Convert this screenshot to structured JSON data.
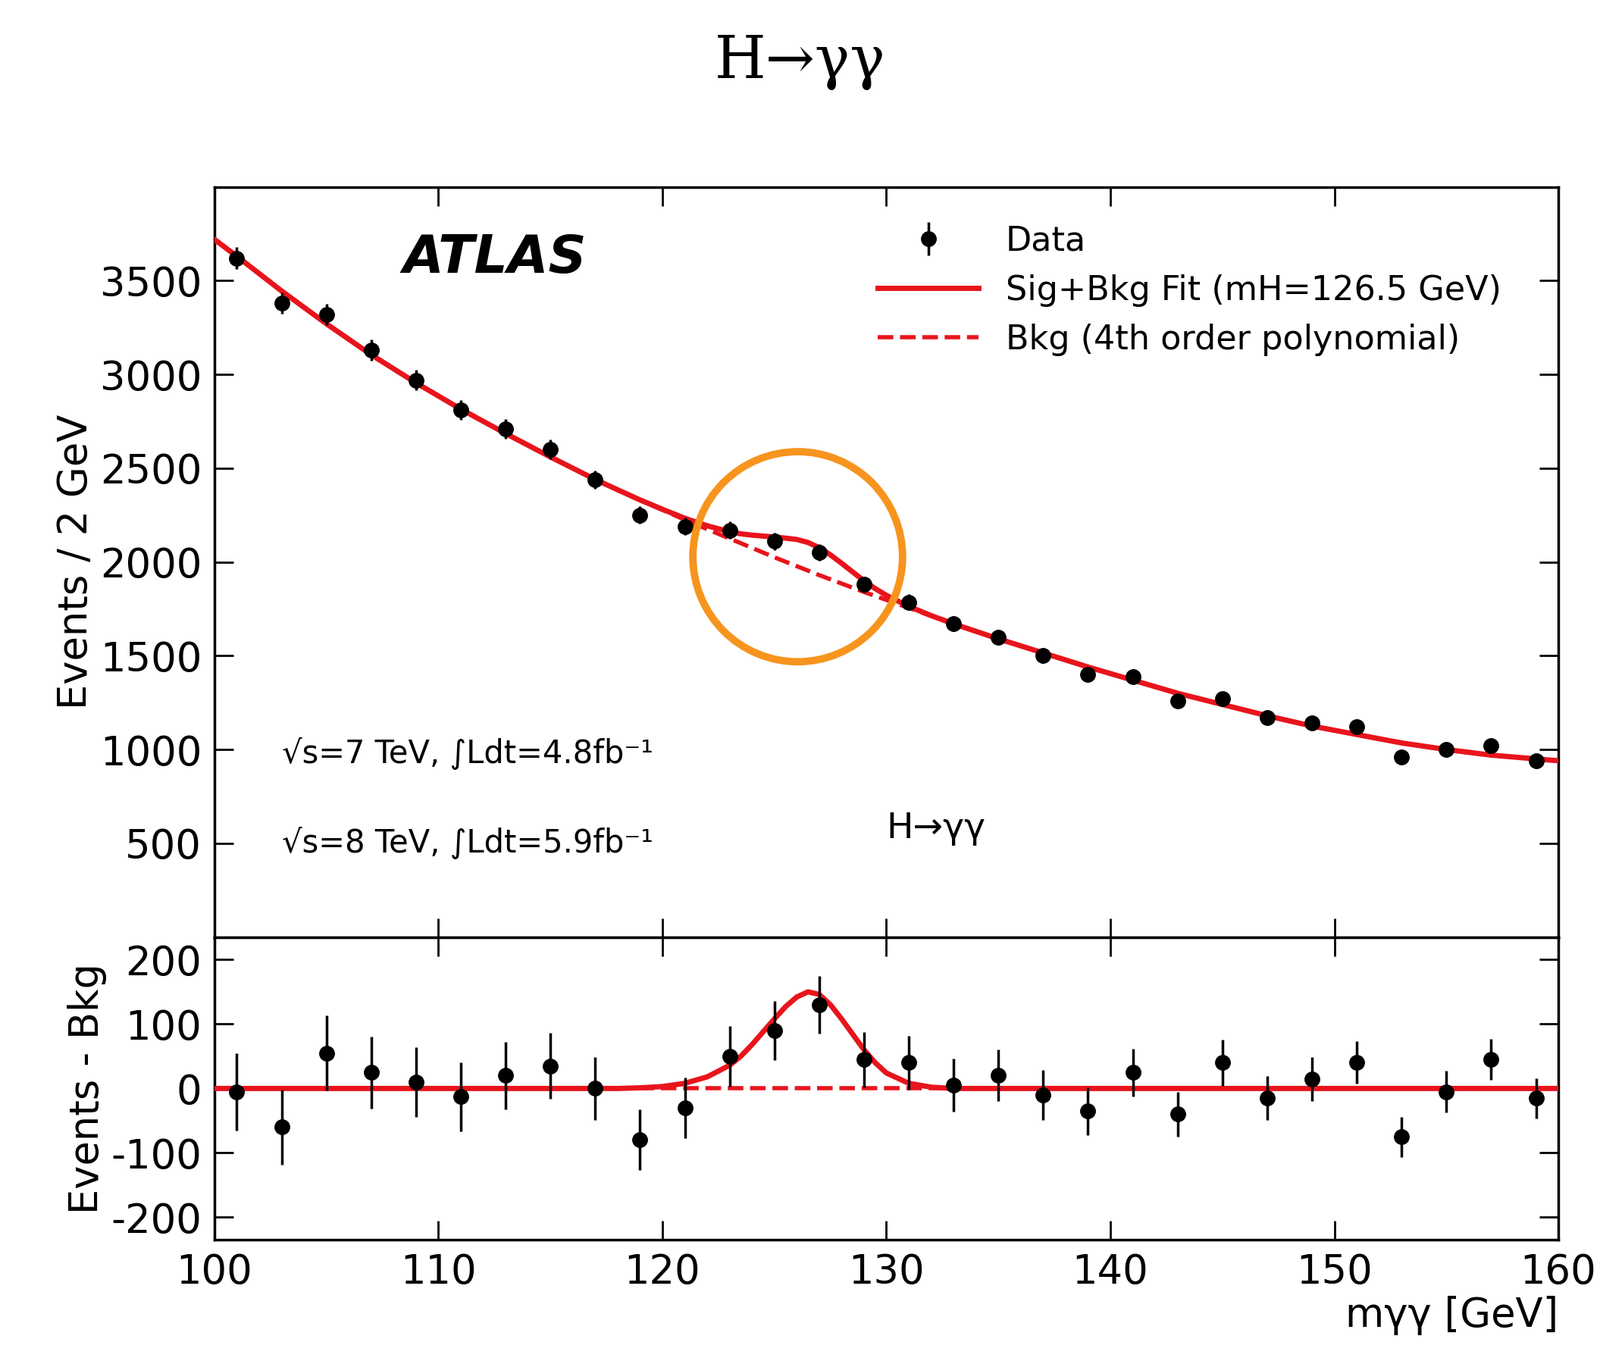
{
  "chart_data": [
    {
      "type": "scatter",
      "title": "H→γγ",
      "y_label": "Events / 2 GeV",
      "annotations": [
        "ATLAS",
        "√s=7 TeV, ∫Ldt=4.8fb⁻¹",
        "√s=8 TeV, ∫Ldt=5.9fb⁻¹",
        "H→γγ"
      ],
      "xlim": [
        100,
        160
      ],
      "xticks": [
        100,
        110,
        120,
        130,
        140,
        150,
        160
      ],
      "ylim": [
        0,
        4000
      ],
      "yticks": [
        500,
        1000,
        1500,
        2000,
        2500,
        3000,
        3500
      ],
      "tick_labels": "y",
      "legend": "upper right",
      "series": [
        {
          "name": "Data",
          "type": "scatter",
          "color": "#000000",
          "marker": "o",
          "x": [
            101,
            103,
            105,
            107,
            109,
            111,
            113,
            115,
            117,
            119,
            121,
            123,
            125,
            127,
            129,
            131,
            133,
            135,
            137,
            139,
            141,
            143,
            145,
            147,
            149,
            151,
            153,
            155,
            157,
            159
          ],
          "values": [
            3620,
            3380,
            3320,
            3130,
            2970,
            2810,
            2710,
            2600,
            2440,
            2250,
            2190,
            2170,
            2110,
            2050,
            1880,
            1785,
            1670,
            1600,
            1500,
            1400,
            1390,
            1260,
            1270,
            1170,
            1140,
            1120,
            960,
            1000,
            1020,
            940
          ],
          "errors": [
            60,
            58,
            58,
            56,
            54,
            53,
            52,
            51,
            49,
            47,
            47,
            47,
            46,
            45,
            43,
            42,
            41,
            40,
            39,
            37,
            37,
            35,
            36,
            34,
            34,
            33,
            31,
            32,
            32,
            31
          ]
        },
        {
          "name": "Sig+Bkg Fit (mH=126.5 GeV)",
          "type": "line",
          "color": "#e8141c",
          "line_style": "solid",
          "x": [
            100,
            101,
            103,
            105,
            107,
            109,
            111,
            113,
            115,
            117,
            118,
            119,
            120,
            121,
            122,
            123,
            123.5,
            124,
            124.5,
            125,
            125.5,
            126,
            126.5,
            127,
            127.5,
            128,
            128.5,
            129,
            129.5,
            130,
            131,
            132,
            133,
            135,
            137,
            139,
            141,
            143,
            145,
            147,
            149,
            151,
            153,
            155,
            157,
            159,
            160
          ],
          "values": [
            3720,
            3630,
            3445,
            3270,
            3105,
            2955,
            2815,
            2685,
            2560,
            2440,
            2385,
            2331,
            2281,
            2233,
            2193,
            2161,
            2150,
            2143,
            2138,
            2133,
            2127,
            2120,
            2104,
            2076,
            2038,
            1993,
            1946,
            1900,
            1858,
            1822,
            1763,
            1714,
            1670,
            1590,
            1515,
            1440,
            1370,
            1300,
            1240,
            1180,
            1125,
            1080,
            1035,
            1000,
            970,
            950,
            940
          ]
        },
        {
          "name": "Bkg (4th order polynomial)",
          "type": "line",
          "color": "#e8141c",
          "line_style": "dashed",
          "x": [
            100,
            101,
            103,
            105,
            107,
            109,
            111,
            113,
            115,
            117,
            119,
            121,
            123,
            125,
            127,
            129,
            131,
            133,
            135,
            137,
            139,
            141,
            143,
            145,
            147,
            149,
            151,
            153,
            155,
            157,
            159,
            160
          ],
          "values": [
            3720,
            3630,
            3445,
            3270,
            3105,
            2955,
            2815,
            2685,
            2560,
            2440,
            2330,
            2225,
            2125,
            2025,
            1930,
            1840,
            1755,
            1670,
            1590,
            1515,
            1440,
            1370,
            1300,
            1240,
            1180,
            1125,
            1080,
            1035,
            1000,
            970,
            950,
            940
          ]
        }
      ]
    },
    {
      "type": "scatter",
      "x_label": "mγγ [GeV]",
      "y_label": "Events - Bkg",
      "xlim": [
        100,
        160
      ],
      "xticks": [
        100,
        110,
        120,
        130,
        140,
        150,
        160
      ],
      "ylim": [
        -235,
        235
      ],
      "yticks": [
        -200,
        -100,
        0,
        100,
        200
      ],
      "series": [
        {
          "type": "scatter",
          "color": "#000000",
          "marker": "o",
          "x": [
            101,
            103,
            105,
            107,
            109,
            111,
            113,
            115,
            117,
            119,
            121,
            123,
            125,
            127,
            129,
            131,
            133,
            135,
            137,
            139,
            141,
            143,
            145,
            147,
            149,
            151,
            153,
            155,
            157,
            159
          ],
          "values": [
            -5,
            -60,
            55,
            25,
            10,
            -13,
            20,
            35,
            0,
            -80,
            -30,
            50,
            90,
            130,
            45,
            40,
            5,
            20,
            -10,
            -35,
            25,
            -40,
            40,
            -15,
            15,
            40,
            -75,
            -5,
            45,
            -15
          ],
          "errors": [
            60,
            58,
            58,
            56,
            54,
            53,
            52,
            51,
            49,
            47,
            47,
            47,
            46,
            45,
            43,
            42,
            41,
            40,
            39,
            37,
            37,
            35,
            36,
            34,
            34,
            33,
            31,
            32,
            32,
            31
          ]
        },
        {
          "type": "line",
          "color": "#e8141c",
          "line_style": "dashed",
          "x": [
            100,
            160
          ],
          "values": [
            0,
            0
          ]
        },
        {
          "type": "line",
          "color": "#e8141c",
          "line_style": "solid",
          "x": [
            100,
            118,
            119,
            120,
            121,
            122,
            123,
            123.5,
            124,
            124.5,
            125,
            125.5,
            126,
            126.5,
            127,
            127.5,
            128,
            128.5,
            129,
            129.5,
            130,
            131,
            132,
            133,
            160
          ],
          "values": [
            0,
            0,
            1,
            3,
            8,
            18,
            36,
            50,
            68,
            88,
            108,
            127,
            142,
            150,
            146,
            130,
            108,
            84,
            60,
            40,
            24,
            8,
            2,
            0,
            0
          ]
        }
      ]
    }
  ]
}
